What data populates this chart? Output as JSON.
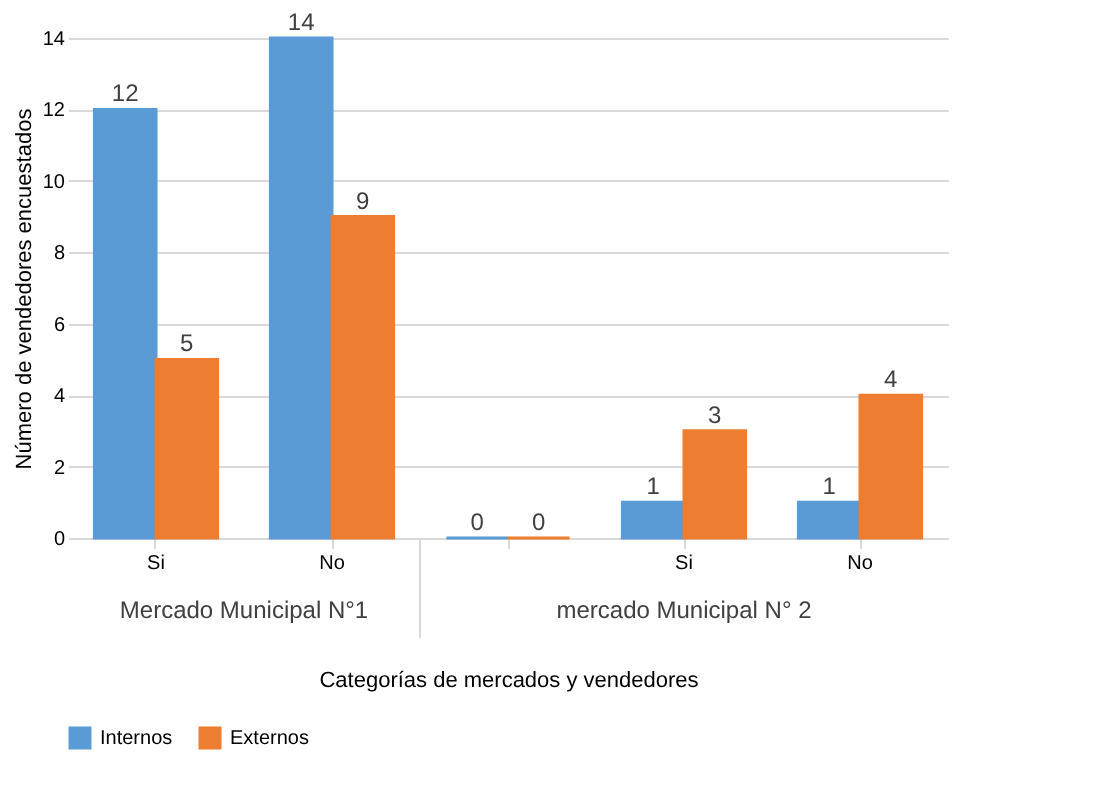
{
  "chart_data": {
    "type": "bar",
    "xlabel": "Categorías de mercados y vendedores",
    "ylabel": "Número de vendedores encuestados",
    "categories": [
      "Si",
      "No",
      null,
      "Si",
      "No"
    ],
    "series": [
      {
        "name": "Internos",
        "color": "#5b9bd5",
        "values": [
          12,
          14,
          0,
          1,
          1
        ]
      },
      {
        "name": "Externos",
        "color": "#ed7d31",
        "values": [
          5,
          9,
          0,
          3,
          4
        ]
      }
    ],
    "annotations": [
      "Mercado Municipal N°1",
      "mercado Municipal N° 2"
    ],
    "ylim": [
      0,
      14
    ],
    "yticks": [
      0,
      2,
      4,
      6,
      8,
      10,
      12,
      14
    ],
    "grid": "y",
    "legend": "bottom",
    "data_labels": true
  }
}
